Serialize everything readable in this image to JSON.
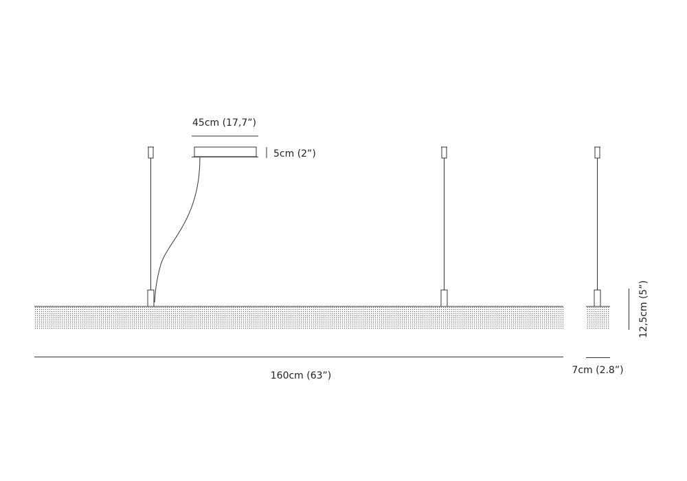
{
  "dimensions": {
    "canopy_width": "45cm (17,7”)",
    "canopy_height": "5cm (2”)",
    "length": "160cm (63”)",
    "depth": "7cm (2.8”)",
    "height": "12,5cm (5”)"
  },
  "colors": {
    "line": "#333333",
    "text": "#222222",
    "texture": "#555555"
  }
}
